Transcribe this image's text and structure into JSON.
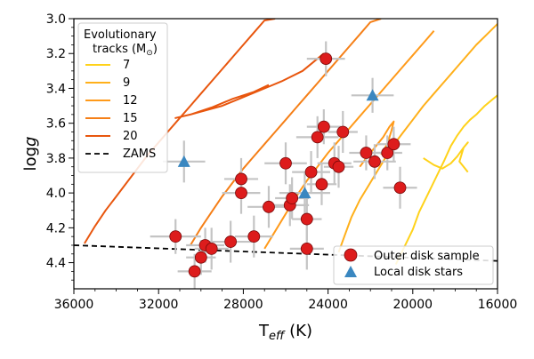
{
  "chart_data": {
    "type": "scatter",
    "xlabel_main": "T",
    "xlabel_sub": "eff",
    "xlabel_unit": " (K)",
    "ylabel_main": "log",
    "ylabel_italic": "g",
    "xlim": [
      36000,
      16000
    ],
    "ylim": [
      4.55,
      3.0
    ],
    "xticks": [
      36000,
      32000,
      28000,
      24000,
      20000,
      16000
    ],
    "xtick_labels": [
      "36000",
      "32000",
      "28000",
      "24000",
      "20000",
      "16000"
    ],
    "yticks": [
      3.0,
      3.2,
      3.4,
      3.6,
      3.8,
      4.0,
      4.2,
      4.4
    ],
    "ytick_labels": [
      "3.0",
      "3.2",
      "3.4",
      "3.6",
      "3.8",
      "4.0",
      "4.2",
      "4.4"
    ],
    "track_legend": {
      "title_line1": "Evolutionary",
      "title_line2": "tracks (M",
      "title_sym": "⊙",
      "title_close": ")",
      "entries": [
        {
          "label": "7",
          "color": "#ffd21a"
        },
        {
          "label": "9",
          "color": "#ffb01a"
        },
        {
          "label": "12",
          "color": "#ff9a1a"
        },
        {
          "label": "15",
          "color": "#f57f17"
        },
        {
          "label": "20",
          "color": "#e8560e"
        },
        {
          "label": "ZAMS",
          "color": "#000000"
        }
      ]
    },
    "sample_legend": {
      "outer_label": "Outer disk sample",
      "local_label": "Local disk stars",
      "outer_color": "#dd1c1c",
      "local_color": "#3a87c0"
    },
    "zams": {
      "x": [
        36000,
        16000
      ],
      "y": [
        4.3,
        4.39
      ]
    },
    "tracks": [
      {
        "mass": "7",
        "color": "#ffd21a",
        "x": [
          20800,
          20400,
          20000,
          19700,
          19300,
          18900,
          18500,
          18200,
          17900,
          17600,
          17300,
          17000,
          16600,
          16200,
          16000
        ],
        "y": [
          4.41,
          4.31,
          4.21,
          4.11,
          4.01,
          3.91,
          3.81,
          3.73,
          3.67,
          3.62,
          3.58,
          3.55,
          3.5,
          3.46,
          3.44
        ]
      },
      {
        "mass": "7-hook",
        "color": "#ffd21a",
        "x": [
          19500,
          19000,
          18600,
          18200,
          17900,
          17600,
          17400,
          17600,
          17800,
          17400
        ],
        "y": [
          3.8,
          3.84,
          3.86,
          3.83,
          3.79,
          3.74,
          3.71,
          3.74,
          3.82,
          3.88
        ]
      },
      {
        "mass": "9",
        "color": "#ffb01a",
        "x": [
          23500,
          23200,
          22900,
          22500,
          22000,
          21500,
          21000,
          20500,
          20000,
          19500,
          19000,
          18500,
          18000,
          17500,
          17000,
          16500,
          16000
        ],
        "y": [
          4.34,
          4.24,
          4.14,
          4.04,
          3.94,
          3.84,
          3.74,
          3.66,
          3.58,
          3.5,
          3.43,
          3.36,
          3.29,
          3.22,
          3.15,
          3.09,
          3.03
        ]
      },
      {
        "mass": "12",
        "color": "#ff9a1a",
        "x": [
          27000,
          26500,
          26000,
          25500,
          25000,
          24500,
          24000,
          23500,
          23000,
          22500,
          22000,
          21500,
          21000,
          20500,
          20000,
          19500,
          19000
        ],
        "y": [
          4.32,
          4.22,
          4.12,
          4.02,
          3.93,
          3.85,
          3.77,
          3.7,
          3.63,
          3.56,
          3.49,
          3.42,
          3.35,
          3.28,
          3.21,
          3.14,
          3.07
        ]
      },
      {
        "mass": "12-hook",
        "color": "#ff9a1a",
        "x": [
          22500,
          22200,
          21800,
          21400,
          21100,
          20900,
          21000,
          21200,
          21500
        ],
        "y": [
          3.85,
          3.8,
          3.74,
          3.68,
          3.62,
          3.59,
          3.64,
          3.72,
          3.78
        ]
      },
      {
        "mass": "15",
        "color": "#f57f17",
        "x": [
          30500,
          30000,
          29500,
          29000,
          28500,
          28000,
          27500,
          27000,
          26500,
          26000,
          25500,
          25000,
          24500,
          24000,
          23500,
          23000,
          22500,
          22000,
          21500
        ],
        "y": [
          4.3,
          4.2,
          4.11,
          4.02,
          3.94,
          3.86,
          3.79,
          3.72,
          3.65,
          3.58,
          3.51,
          3.44,
          3.37,
          3.3,
          3.23,
          3.16,
          3.09,
          3.02,
          3.0
        ]
      },
      {
        "mass": "20",
        "color": "#e8560e",
        "x": [
          35500,
          35000,
          34500,
          34000,
          33500,
          33000,
          32500,
          32000,
          31500,
          31000,
          30500,
          30000,
          29500,
          29000,
          28500,
          28000,
          27500,
          27000,
          26500
        ],
        "y": [
          4.29,
          4.19,
          4.1,
          4.02,
          3.94,
          3.86,
          3.78,
          3.71,
          3.64,
          3.57,
          3.5,
          3.43,
          3.36,
          3.29,
          3.22,
          3.15,
          3.08,
          3.01,
          3.0
        ]
      },
      {
        "mass": "20-hook",
        "color": "#e8560e",
        "x": [
          26800,
          27500,
          28500,
          29500,
          30500,
          31200,
          30500,
          29000,
          28000,
          27000,
          26200,
          25200,
          24200
        ],
        "y": [
          3.38,
          3.42,
          3.46,
          3.51,
          3.55,
          3.57,
          3.55,
          3.5,
          3.45,
          3.4,
          3.36,
          3.3,
          3.2
        ]
      }
    ],
    "outer_disk_sample": [
      {
        "teff": 31200,
        "logg": 4.25,
        "xerr": 1200,
        "yerr": 0.1
      },
      {
        "teff": 30300,
        "logg": 4.45,
        "xerr": 800,
        "yerr": 0.1
      },
      {
        "teff": 30000,
        "logg": 4.37,
        "xerr": 700,
        "yerr": 0.1
      },
      {
        "teff": 29800,
        "logg": 4.3,
        "xerr": 900,
        "yerr": 0.1
      },
      {
        "teff": 29500,
        "logg": 4.32,
        "xerr": 800,
        "yerr": 0.12
      },
      {
        "teff": 28600,
        "logg": 4.28,
        "xerr": 1000,
        "yerr": 0.12
      },
      {
        "teff": 28100,
        "logg": 4.0,
        "xerr": 900,
        "yerr": 0.12
      },
      {
        "teff": 28100,
        "logg": 3.92,
        "xerr": 800,
        "yerr": 0.12
      },
      {
        "teff": 27500,
        "logg": 4.25,
        "xerr": 900,
        "yerr": 0.12
      },
      {
        "teff": 26800,
        "logg": 4.08,
        "xerr": 1000,
        "yerr": 0.12
      },
      {
        "teff": 26000,
        "logg": 3.83,
        "xerr": 1000,
        "yerr": 0.12
      },
      {
        "teff": 25800,
        "logg": 4.07,
        "xerr": 900,
        "yerr": 0.12
      },
      {
        "teff": 25700,
        "logg": 4.03,
        "xerr": 800,
        "yerr": 0.12
      },
      {
        "teff": 25000,
        "logg": 4.15,
        "xerr": 700,
        "yerr": 0.12
      },
      {
        "teff": 25000,
        "logg": 4.32,
        "xerr": 800,
        "yerr": 0.12
      },
      {
        "teff": 24800,
        "logg": 3.88,
        "xerr": 900,
        "yerr": 0.12
      },
      {
        "teff": 24500,
        "logg": 3.68,
        "xerr": 1000,
        "yerr": 0.12
      },
      {
        "teff": 24300,
        "logg": 3.95,
        "xerr": 700,
        "yerr": 0.12
      },
      {
        "teff": 24200,
        "logg": 3.62,
        "xerr": 800,
        "yerr": 0.1
      },
      {
        "teff": 24100,
        "logg": 3.23,
        "xerr": 900,
        "yerr": 0.1
      },
      {
        "teff": 23700,
        "logg": 3.83,
        "xerr": 800,
        "yerr": 0.12
      },
      {
        "teff": 23500,
        "logg": 3.85,
        "xerr": 700,
        "yerr": 0.12
      },
      {
        "teff": 23300,
        "logg": 3.65,
        "xerr": 700,
        "yerr": 0.12
      },
      {
        "teff": 22200,
        "logg": 3.77,
        "xerr": 800,
        "yerr": 0.1
      },
      {
        "teff": 21800,
        "logg": 3.82,
        "xerr": 1000,
        "yerr": 0.1
      },
      {
        "teff": 21200,
        "logg": 3.77,
        "xerr": 700,
        "yerr": 0.1
      },
      {
        "teff": 20900,
        "logg": 3.72,
        "xerr": 800,
        "yerr": 0.1
      },
      {
        "teff": 20600,
        "logg": 3.97,
        "xerr": 800,
        "yerr": 0.12
      }
    ],
    "local_disk_stars": [
      {
        "teff": 30800,
        "logg": 3.82,
        "xerr": 1000,
        "yerr": 0.12
      },
      {
        "teff": 25100,
        "logg": 4.0,
        "xerr": 1200,
        "yerr": 0.12
      },
      {
        "teff": 21900,
        "logg": 3.44,
        "xerr": 1000,
        "yerr": 0.1
      }
    ]
  }
}
